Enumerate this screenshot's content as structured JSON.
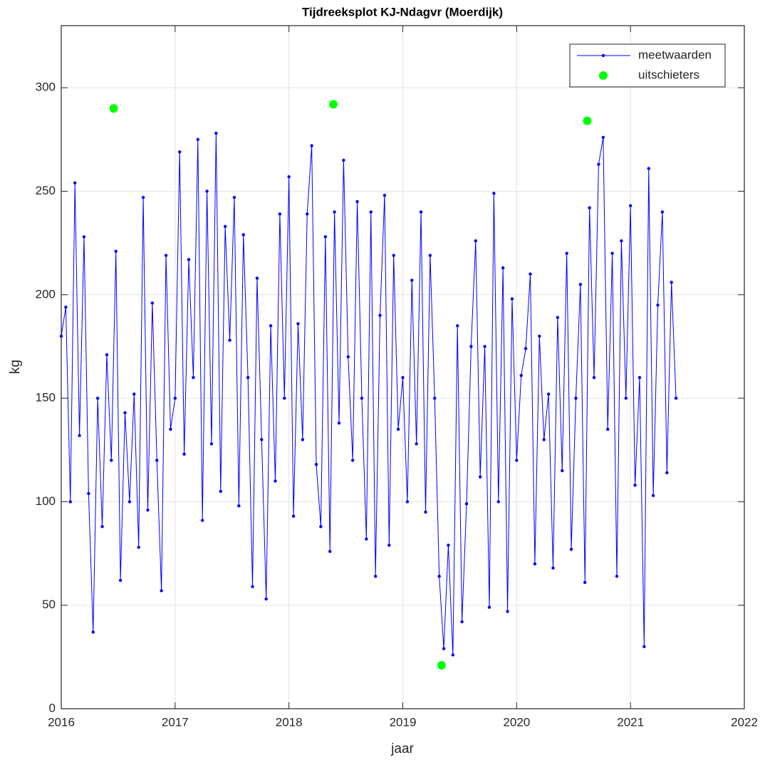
{
  "chart_data": {
    "type": "line",
    "title": "Tijdreeksplot KJ-Ndagvr (Moerdijk)",
    "xlabel": "jaar",
    "ylabel": "kg",
    "xlim": [
      2016,
      2022
    ],
    "xticks": [
      2016,
      2017,
      2018,
      2019,
      2020,
      2021,
      2022
    ],
    "ylim": [
      0,
      330
    ],
    "yticks": [
      0,
      50,
      100,
      150,
      200,
      250,
      300
    ],
    "grid": true,
    "legend": "upper right",
    "series": [
      {
        "name": "meetwaarden",
        "color": "#0000ff",
        "style": "line-dot",
        "x": [
          2016.0,
          2016.04,
          2016.08,
          2016.12,
          2016.16,
          2016.2,
          2016.24,
          2016.28,
          2016.32,
          2016.36,
          2016.4,
          2016.44,
          2016.48,
          2016.52,
          2016.56,
          2016.6,
          2016.64,
          2016.68,
          2016.72,
          2016.76,
          2016.8,
          2016.84,
          2016.88,
          2016.92,
          2016.96,
          2017.0,
          2017.04,
          2017.08,
          2017.12,
          2017.16,
          2017.2,
          2017.24,
          2017.28,
          2017.32,
          2017.36,
          2017.4,
          2017.44,
          2017.48,
          2017.52,
          2017.56,
          2017.6,
          2017.64,
          2017.68,
          2017.72,
          2017.76,
          2017.8,
          2017.84,
          2017.88,
          2017.92,
          2017.96,
          2018.0,
          2018.04,
          2018.08,
          2018.12,
          2018.16,
          2018.2,
          2018.24,
          2018.28,
          2018.32,
          2018.36,
          2018.4,
          2018.44,
          2018.48,
          2018.52,
          2018.56,
          2018.6,
          2018.64,
          2018.68,
          2018.72,
          2018.76,
          2018.8,
          2018.84,
          2018.88,
          2018.92,
          2018.96,
          2019.0,
          2019.04,
          2019.08,
          2019.12,
          2019.16,
          2019.2,
          2019.24,
          2019.28,
          2019.32,
          2019.36,
          2019.4,
          2019.44,
          2019.48,
          2019.52,
          2019.56,
          2019.6,
          2019.64,
          2019.68,
          2019.72,
          2019.76,
          2019.8,
          2019.84,
          2019.88,
          2019.92,
          2019.96,
          2020.0,
          2020.04,
          2020.08,
          2020.12,
          2020.16,
          2020.2,
          2020.24,
          2020.28,
          2020.32,
          2020.36,
          2020.4,
          2020.44,
          2020.48,
          2020.52,
          2020.56,
          2020.6,
          2020.64,
          2020.68,
          2020.72,
          2020.76,
          2020.8,
          2020.84,
          2020.88,
          2020.92,
          2020.96,
          2021.0,
          2021.04,
          2021.08,
          2021.12,
          2021.16,
          2021.2,
          2021.24,
          2021.28,
          2021.32,
          2021.36,
          2021.4
        ],
        "values": [
          180,
          194,
          100,
          254,
          132,
          228,
          104,
          37,
          150,
          88,
          171,
          120,
          221,
          62,
          143,
          100,
          152,
          78,
          247,
          96,
          196,
          120,
          57,
          219,
          135,
          150,
          269,
          123,
          217,
          160,
          275,
          91,
          250,
          128,
          278,
          105,
          233,
          178,
          247,
          98,
          229,
          160,
          59,
          208,
          130,
          53,
          185,
          110,
          239,
          150,
          257,
          93,
          186,
          130,
          239,
          272,
          118,
          88,
          228,
          76,
          240,
          138,
          265,
          170,
          120,
          245,
          150,
          82,
          240,
          64,
          190,
          248,
          79,
          219,
          135,
          160,
          100,
          207,
          128,
          240,
          95,
          219,
          150,
          64,
          29,
          79,
          26,
          185,
          42,
          99,
          175,
          226,
          112,
          175,
          49,
          249,
          100,
          213,
          47,
          198,
          120,
          161,
          174,
          210,
          70,
          180,
          130,
          152,
          68,
          189,
          115,
          220,
          77,
          150,
          205,
          61,
          242,
          160,
          263,
          276,
          135,
          220,
          64,
          226,
          150,
          243,
          108,
          160,
          30,
          261,
          103,
          195,
          240,
          114,
          206,
          150
        ]
      },
      {
        "name": "uitschieters",
        "color": "#00ff00",
        "style": "marker",
        "x": [
          2016.46,
          2018.39,
          2019.34,
          2020.62
        ],
        "values": [
          290,
          292,
          21,
          284
        ]
      }
    ]
  }
}
